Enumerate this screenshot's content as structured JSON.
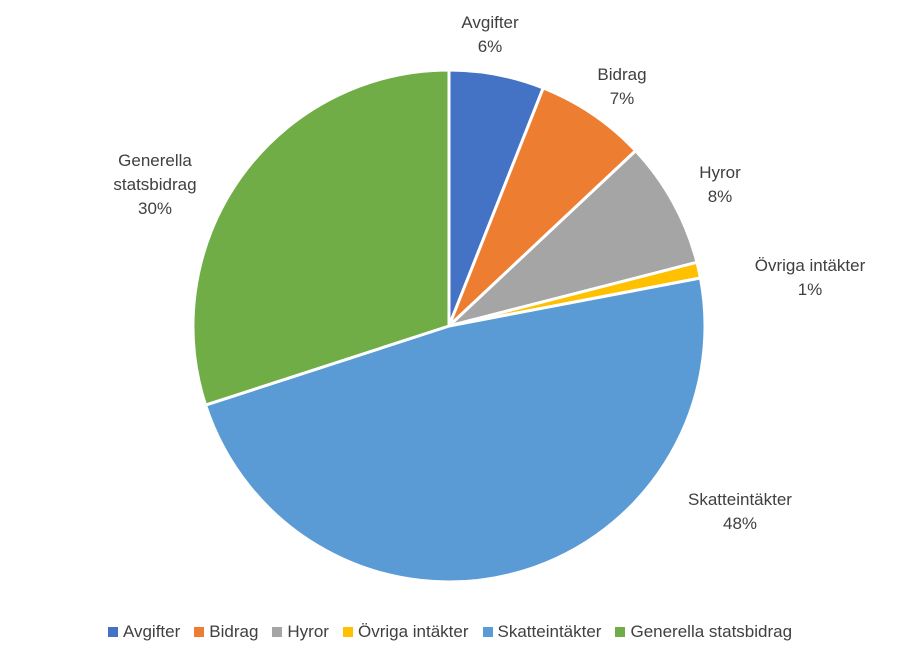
{
  "chart_data": {
    "type": "pie",
    "categories": [
      "Avgifter",
      "Bidrag",
      "Hyror",
      "Övriga intäkter",
      "Skatteintäkter",
      "Generella statsbidrag"
    ],
    "values": [
      6,
      7,
      8,
      1,
      48,
      30
    ],
    "value_labels": [
      "6%",
      "7%",
      "8%",
      "1%",
      "48%",
      "30%"
    ],
    "colors": [
      "#4472c4",
      "#ed7d31",
      "#a5a5a5",
      "#ffc000",
      "#5b9bd5",
      "#70ad47"
    ],
    "legend": "bottom"
  }
}
